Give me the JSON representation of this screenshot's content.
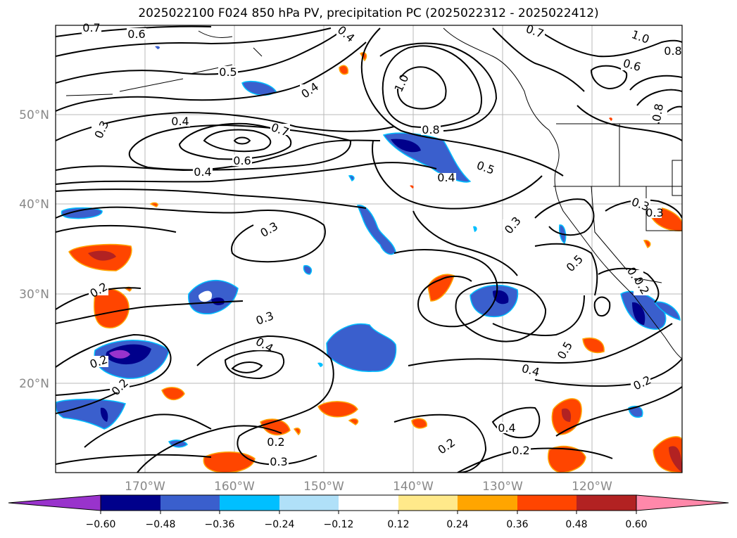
{
  "title": "2025022100 F024 850 hPa PV, precipitation PC (2025022312 - 2025022412)",
  "map": {
    "lat_labels": [
      "50°N",
      "40°N",
      "30°N",
      "20°N"
    ],
    "lon_labels": [
      "170°W",
      "160°W",
      "150°W",
      "140°W",
      "130°W",
      "120°W"
    ],
    "contour_labels": [
      "0.7",
      "0.6",
      "0.4",
      "0.7",
      "1.0",
      "0.8",
      "0.5",
      "0.4",
      "1.0",
      "0.3",
      "0.4",
      "0.7",
      "0.6",
      "0.4",
      "0.8",
      "0.5",
      "0.4",
      "0.6",
      "0.8",
      "0.3",
      "0.3",
      "0.3",
      "0.2",
      "0.3",
      "0.4",
      "0.2",
      "0.2",
      "0.2",
      "0.3",
      "0.4",
      "0.5",
      "0.2",
      "0.2",
      "0.2",
      "0.4",
      "0.5",
      "0.4",
      "0.2",
      "0.3"
    ]
  },
  "colorbar": {
    "ticks": [
      "−0.60",
      "−0.48",
      "−0.36",
      "−0.24",
      "−0.12",
      "0.12",
      "0.24",
      "0.36",
      "0.48",
      "0.60"
    ],
    "colors": [
      "#9933cc",
      "#00008b",
      "#3a5fcd",
      "#00bfff",
      "#b0e0f8",
      "#ffffff",
      "#ffe98a",
      "#ffa500",
      "#ff4500",
      "#b22222",
      "#ff88aa"
    ]
  }
}
